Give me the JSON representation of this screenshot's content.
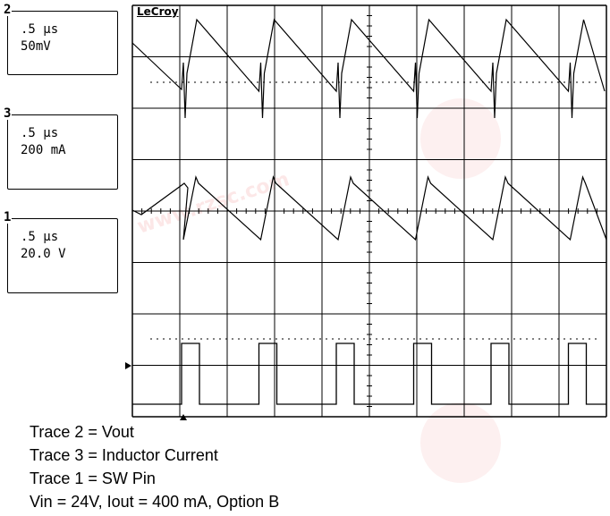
{
  "brand": "LeCroy",
  "channels": [
    {
      "id": "box2",
      "number": "2",
      "timebase": ".5 μs",
      "scale": "50mV"
    },
    {
      "id": "box3",
      "number": "3",
      "timebase": ".5 μs",
      "scale": "200 mA"
    },
    {
      "id": "box1",
      "number": "1",
      "timebase": ".5 μs",
      "scale": "20.0 V"
    }
  ],
  "caption": {
    "line1": "Trace 2 = Vout",
    "line2": "Trace 3 = Inductor Current",
    "line3": "Trace 1 = SW Pin",
    "line4": "Vin = 24V, Iout = 400 mA, Option B"
  },
  "watermark": "www.rzsc.com",
  "colors": {
    "trace": "#000000",
    "grid": "#000000",
    "watermark": "#e63c3c"
  }
}
